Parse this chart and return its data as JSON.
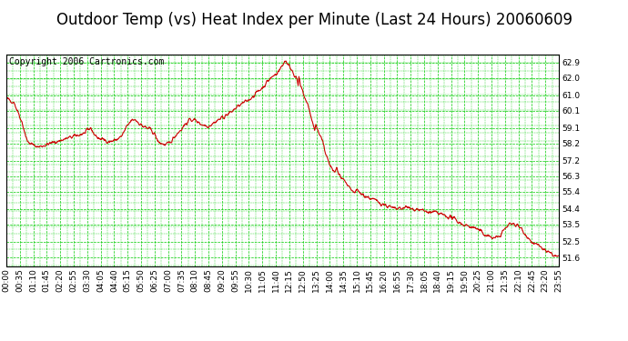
{
  "title": "Outdoor Temp (vs) Heat Index per Minute (Last 24 Hours) 20060609",
  "copyright": "Copyright 2006 Cartronics.com",
  "background_color": "#ffffff",
  "plot_bg_color": "#ffffff",
  "line_color": "#cc0000",
  "grid_major_color": "#00cc00",
  "grid_minor_color": "#00cc00",
  "y_ticks": [
    51.6,
    52.5,
    53.5,
    54.4,
    55.4,
    56.3,
    57.2,
    58.2,
    59.1,
    60.1,
    61.0,
    62.0,
    62.9
  ],
  "ylim": [
    51.1,
    63.35
  ],
  "x_tick_labels": [
    "00:00",
    "00:35",
    "01:10",
    "01:45",
    "02:20",
    "02:55",
    "03:30",
    "04:05",
    "04:40",
    "05:15",
    "05:50",
    "06:25",
    "07:00",
    "07:35",
    "08:10",
    "08:45",
    "09:20",
    "09:55",
    "10:30",
    "11:05",
    "11:40",
    "12:15",
    "12:50",
    "13:25",
    "14:00",
    "14:35",
    "15:10",
    "15:45",
    "16:20",
    "16:55",
    "17:30",
    "18:05",
    "18:40",
    "19:15",
    "19:50",
    "20:25",
    "21:00",
    "21:35",
    "22:10",
    "22:45",
    "23:20",
    "23:55"
  ],
  "title_fontsize": 12,
  "copyright_fontsize": 7,
  "tick_fontsize": 6.5,
  "line_width": 0.8,
  "fig_width": 6.9,
  "fig_height": 3.75,
  "dpi": 100
}
